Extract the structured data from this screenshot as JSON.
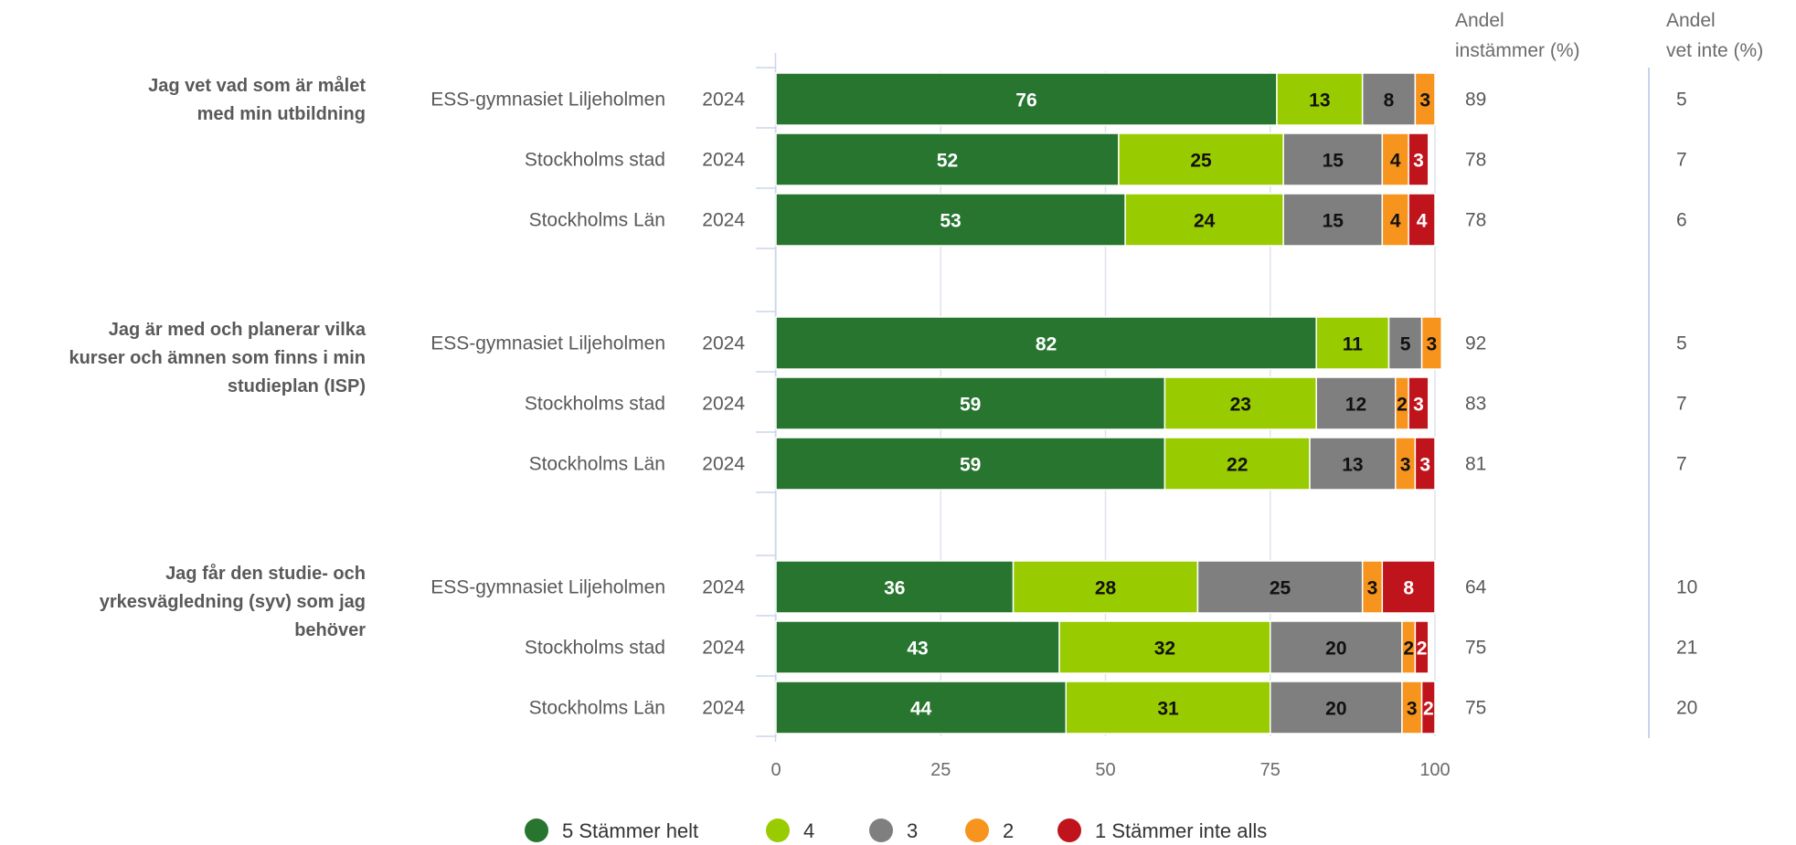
{
  "chart_data": {
    "type": "bar",
    "orientation": "horizontal",
    "stacked": true,
    "xlim": [
      0,
      100
    ],
    "xticks": [
      0,
      25,
      50,
      75,
      100
    ],
    "grid": true,
    "legend_placement": "bottom",
    "columns": {
      "agree_header": [
        "Andel",
        "instämmer (%)"
      ],
      "dontknow_header": [
        "Andel",
        "vet inte (%)"
      ]
    },
    "series": [
      {
        "name": "5 Stämmer helt",
        "color": "#27752f",
        "label_color": "#ffffff"
      },
      {
        "name": "4",
        "color": "#99cc00",
        "label_color": "#111111"
      },
      {
        "name": "3",
        "color": "#7f7f7f",
        "label_color": "#111111"
      },
      {
        "name": "2",
        "color": "#f7941d",
        "label_color": "#111111"
      },
      {
        "name": "1 Stämmer inte alls",
        "color": "#c0141c",
        "label_color": "#ffffff"
      }
    ],
    "groups": [
      {
        "question": [
          "Jag vet vad som är målet",
          "med min utbildning"
        ],
        "rows": [
          {
            "org": "ESS-gymnasiet Liljeholmen",
            "year": "2024",
            "values": [
              76,
              13,
              8,
              3,
              0
            ],
            "agree": "89",
            "dontknow": "5"
          },
          {
            "org": "Stockholms stad",
            "year": "2024",
            "values": [
              52,
              25,
              15,
              4,
              3
            ],
            "agree": "78",
            "dontknow": "7"
          },
          {
            "org": "Stockholms Län",
            "year": "2024",
            "values": [
              53,
              24,
              15,
              4,
              4
            ],
            "agree": "78",
            "dontknow": "6"
          }
        ]
      },
      {
        "question": [
          "Jag är med och planerar vilka",
          "kurser och ämnen som finns i min",
          "studieplan (ISP)"
        ],
        "rows": [
          {
            "org": "ESS-gymnasiet Liljeholmen",
            "year": "2024",
            "values": [
              82,
              11,
              5,
              3,
              0
            ],
            "agree": "92",
            "dontknow": "5"
          },
          {
            "org": "Stockholms stad",
            "year": "2024",
            "values": [
              59,
              23,
              12,
              2,
              3
            ],
            "agree": "83",
            "dontknow": "7"
          },
          {
            "org": "Stockholms Län",
            "year": "2024",
            "values": [
              59,
              22,
              13,
              3,
              3
            ],
            "agree": "81",
            "dontknow": "7"
          }
        ]
      },
      {
        "question": [
          "Jag får den studie- och",
          "yrkesvägledning (syv) som jag",
          "behöver"
        ],
        "rows": [
          {
            "org": "ESS-gymnasiet Liljeholmen",
            "year": "2024",
            "values": [
              36,
              28,
              25,
              3,
              8
            ],
            "agree": "64",
            "dontknow": "10"
          },
          {
            "org": "Stockholms stad",
            "year": "2024",
            "values": [
              43,
              32,
              20,
              2,
              2
            ],
            "agree": "75",
            "dontknow": "21"
          },
          {
            "org": "Stockholms Län",
            "year": "2024",
            "values": [
              44,
              31,
              20,
              3,
              2
            ],
            "agree": "75",
            "dontknow": "20"
          }
        ]
      }
    ]
  }
}
